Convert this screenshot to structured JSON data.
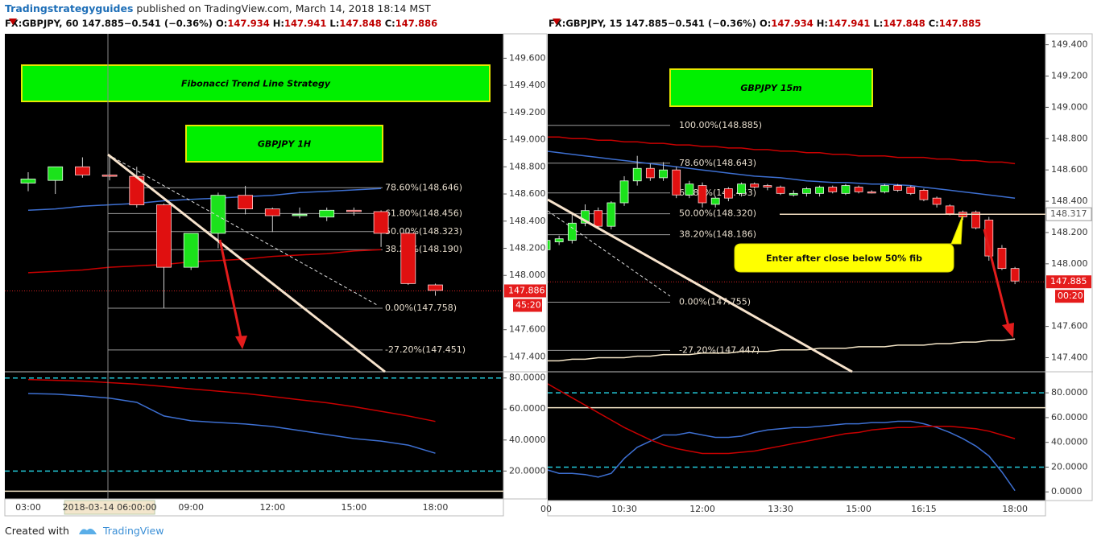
{
  "header": {
    "author": "Tradingstrategyguides",
    "published": "published on TradingView.com, March 14, 2018 18:14 MST"
  },
  "footer": {
    "created_with": "Created with",
    "brand": "TradingView"
  },
  "chart_data": [
    {
      "type": "candlestick",
      "symbol": "FX:GBPJPY, 60",
      "last": "147.885",
      "change": "−0.541 (−0.36%)",
      "ohlc": [
        {
          "label": "O:",
          "value": "147.934"
        },
        {
          "label": "H:",
          "value": "147.941"
        },
        {
          "label": "L:",
          "value": "147.848"
        },
        {
          "label": "C:",
          "value": "147.886"
        }
      ],
      "title": "Fibonacci Trend Line Strategy",
      "subtitle": "GBPJPY 1H",
      "categories": [
        "03:00",
        null,
        null,
        "2018-03-14 06:00:00",
        null,
        null,
        "09:00",
        null,
        null,
        "12:00",
        null,
        null,
        "15:00",
        null,
        null,
        "18:00"
      ],
      "candles": {
        "open": [
          148.68,
          148.7,
          148.8,
          148.74,
          148.73,
          148.52,
          148.06,
          148.31,
          148.59,
          148.49,
          148.44,
          148.43,
          148.48,
          148.47,
          148.31,
          147.93
        ],
        "high": [
          148.76,
          148.8,
          148.87,
          148.88,
          148.8,
          148.53,
          148.15,
          148.61,
          148.66,
          148.5,
          148.5,
          148.5,
          148.5,
          148.48,
          148.32,
          147.94
        ],
        "low": [
          148.62,
          148.6,
          148.72,
          148.7,
          148.5,
          147.76,
          148.04,
          148.2,
          148.45,
          148.32,
          148.42,
          148.4,
          148.44,
          148.21,
          147.93,
          147.85
        ],
        "close": [
          148.71,
          148.8,
          148.74,
          148.73,
          148.52,
          148.06,
          148.31,
          148.59,
          148.49,
          148.44,
          148.45,
          148.48,
          148.47,
          148.31,
          147.94,
          147.89
        ]
      },
      "up_color": "#1be21b",
      "down_color": "#e01010",
      "series": [
        {
          "color": "#3d6fd1",
          "values": [
            148.48,
            148.49,
            148.51,
            148.52,
            148.53,
            148.55,
            148.56,
            148.57,
            148.58,
            148.59,
            148.61,
            148.62,
            148.63,
            148.64,
            null,
            null
          ]
        },
        {
          "color": "#c80000",
          "values": [
            148.02,
            148.03,
            148.04,
            148.06,
            148.07,
            148.08,
            148.1,
            148.11,
            148.12,
            148.14,
            148.15,
            148.16,
            148.18,
            148.19,
            null,
            null
          ]
        }
      ],
      "ylim": [
        147.29,
        149.78
      ],
      "yticks": [
        {
          "value": 149.6,
          "label": "149.600"
        },
        {
          "value": 149.4,
          "label": "149.400"
        },
        {
          "value": 149.2,
          "label": "149.200"
        },
        {
          "value": 149.0,
          "label": "149.000"
        },
        {
          "value": 148.8,
          "label": "148.800"
        },
        {
          "value": 148.6,
          "label": "148.600"
        },
        {
          "value": 148.4,
          "label": "148.400"
        },
        {
          "value": 148.2,
          "label": "148.200"
        },
        {
          "value": 148.0,
          "label": "148.000"
        },
        {
          "value": 147.6,
          "label": "147.600"
        },
        {
          "value": 147.4,
          "label": "147.400"
        }
      ],
      "fib_levels": [
        {
          "label": "78.60%(148.646)",
          "value": 148.646
        },
        {
          "label": "61.80%(148.456)",
          "value": 148.456
        },
        {
          "label": "50.00%(148.323)",
          "value": 148.323
        },
        {
          "label": "38.20%(148.190)",
          "value": 148.19
        },
        {
          "label": "0.00%(147.758)",
          "value": 147.758
        },
        {
          "label": "-27.20%(147.451)",
          "value": 147.451
        }
      ],
      "last_price": 147.886,
      "countdown": "45:20",
      "indicator": {
        "ylim": [
          2,
          84
        ],
        "yticks": [
          {
            "value": 80,
            "label": "80.0000"
          },
          {
            "value": 60,
            "label": "60.0000"
          },
          {
            "value": 40,
            "label": "40.0000"
          },
          {
            "value": 20,
            "label": "20.0000"
          }
        ],
        "dashed_levels": [
          80,
          20
        ],
        "solid_levels": [
          7
        ],
        "series": [
          {
            "color": "#3d6fd1",
            "values": [
              70,
              69.6,
              68.5,
              67,
              64.3,
              55.5,
              52.4,
              51.3,
              50.3,
              48.7,
              46.1,
              43.5,
              40.9,
              39.3,
              36.7,
              31.5
            ]
          },
          {
            "color": "#c80000",
            "values": [
              79,
              78.5,
              78,
              77,
              76,
              74.5,
              73,
              71.5,
              70,
              68,
              66,
              64,
              61.5,
              58.5,
              55.5,
              52
            ]
          }
        ]
      }
    },
    {
      "type": "candlestick",
      "symbol": "FX:GBPJPY, 15",
      "last": "147.885",
      "change": "−0.541 (−0.36%)",
      "ohlc": [
        {
          "label": "O:",
          "value": "147.934"
        },
        {
          "label": "H:",
          "value": "147.941"
        },
        {
          "label": "L:",
          "value": "147.848"
        },
        {
          "label": "C:",
          "value": "147.885"
        }
      ],
      "subtitle": "GBPJPY 15m",
      "categories": [
        "00",
        null,
        null,
        null,
        null,
        null,
        "10:30",
        null,
        null,
        null,
        null,
        null,
        "12:00",
        null,
        null,
        null,
        null,
        null,
        "13:30",
        null,
        null,
        null,
        null,
        null,
        "15:00",
        null,
        null,
        null,
        null,
        "16:15",
        null,
        null,
        null,
        null,
        null,
        null,
        "18:00"
      ],
      "candles": {
        "open": [
          148.09,
          148.14,
          148.15,
          148.26,
          148.34,
          148.24,
          148.39,
          148.53,
          148.61,
          148.55,
          148.6,
          148.44,
          148.5,
          148.38,
          148.48,
          148.45,
          148.51,
          148.5,
          148.49,
          148.44,
          148.45,
          148.45,
          148.49,
          148.45,
          148.49,
          148.46,
          148.46,
          148.5,
          148.49,
          148.47,
          148.42,
          148.37,
          148.33,
          148.33,
          148.28,
          148.1,
          147.97
        ],
        "high": [
          148.17,
          148.18,
          148.32,
          148.38,
          148.36,
          148.4,
          148.56,
          148.69,
          148.64,
          148.65,
          148.62,
          148.53,
          148.52,
          148.43,
          148.49,
          148.52,
          148.52,
          148.51,
          148.5,
          148.47,
          148.49,
          148.5,
          148.5,
          148.51,
          148.5,
          148.47,
          148.51,
          148.51,
          148.5,
          148.48,
          148.43,
          148.38,
          148.34,
          148.34,
          148.3,
          148.12,
          147.98
        ],
        "low": [
          148.05,
          148.12,
          148.13,
          148.24,
          148.22,
          148.22,
          148.37,
          148.5,
          148.53,
          148.53,
          148.42,
          148.42,
          148.36,
          148.36,
          148.4,
          148.43,
          148.48,
          148.47,
          148.44,
          148.43,
          148.43,
          148.43,
          148.45,
          148.44,
          148.45,
          148.45,
          148.45,
          148.46,
          148.44,
          148.4,
          148.36,
          148.31,
          148.28,
          148.22,
          148.02,
          147.96,
          147.87
        ],
        "close": [
          148.15,
          148.16,
          148.26,
          148.34,
          148.24,
          148.39,
          148.53,
          148.61,
          148.55,
          148.6,
          148.44,
          148.51,
          148.39,
          148.42,
          148.42,
          148.51,
          148.49,
          148.49,
          148.45,
          148.45,
          148.48,
          148.49,
          148.46,
          148.5,
          148.46,
          148.455,
          148.5,
          148.47,
          148.45,
          148.41,
          148.38,
          148.32,
          148.3,
          148.23,
          148.05,
          147.97,
          147.89
        ]
      },
      "up_color": "#1be21b",
      "down_color": "#e01010",
      "series": [
        {
          "color": "#3d6fd1",
          "values": [
            148.72,
            148.71,
            148.7,
            148.69,
            148.68,
            148.67,
            148.66,
            148.65,
            148.64,
            148.63,
            148.62,
            148.61,
            148.6,
            148.59,
            148.58,
            148.57,
            148.56,
            148.555,
            148.55,
            148.54,
            148.53,
            148.525,
            148.52,
            148.52,
            148.515,
            148.51,
            148.51,
            148.505,
            148.5,
            148.49,
            148.48,
            148.47,
            148.46,
            148.45,
            148.44,
            148.43,
            148.42
          ]
        },
        {
          "color": "#c80000",
          "values": [
            148.81,
            148.81,
            148.8,
            148.8,
            148.79,
            148.79,
            148.78,
            148.78,
            148.77,
            148.77,
            148.76,
            148.76,
            148.75,
            148.75,
            148.74,
            148.74,
            148.73,
            148.73,
            148.72,
            148.72,
            148.71,
            148.71,
            148.7,
            148.7,
            148.69,
            148.69,
            148.69,
            148.68,
            148.68,
            148.68,
            148.67,
            148.67,
            148.66,
            148.66,
            148.65,
            148.65,
            148.64
          ]
        },
        {
          "color": "#f5e6c8",
          "values": [
            147.38,
            147.38,
            147.39,
            147.39,
            147.4,
            147.4,
            147.4,
            147.41,
            147.41,
            147.42,
            147.42,
            147.42,
            147.43,
            147.43,
            147.43,
            147.44,
            147.44,
            147.44,
            147.45,
            147.45,
            147.45,
            147.46,
            147.46,
            147.46,
            147.47,
            147.47,
            147.47,
            147.48,
            147.48,
            147.48,
            147.49,
            147.49,
            147.5,
            147.5,
            147.51,
            147.51,
            147.52
          ]
        }
      ],
      "ylim": [
        147.31,
        149.47
      ],
      "yticks": [
        {
          "value": 149.4,
          "label": "149.400"
        },
        {
          "value": 149.2,
          "label": "149.200"
        },
        {
          "value": 149.0,
          "label": "149.000"
        },
        {
          "value": 148.8,
          "label": "148.800"
        },
        {
          "value": 148.6,
          "label": "148.600"
        },
        {
          "value": 148.4,
          "label": "148.400"
        },
        {
          "value": 148.2,
          "label": "148.200"
        },
        {
          "value": 148.0,
          "label": "148.000"
        },
        {
          "value": 147.6,
          "label": "147.600"
        },
        {
          "value": 147.4,
          "label": "147.400"
        }
      ],
      "fib_levels": [
        {
          "label": "100.00%(148.885)",
          "value": 148.885
        },
        {
          "label": "78.60%(148.643)",
          "value": 148.643
        },
        {
          "label": "61.80%(148.453)",
          "value": 148.453
        },
        {
          "label": "50.00%(148.320)",
          "value": 148.32
        },
        {
          "label": "38.20%(148.186)",
          "value": 148.186
        },
        {
          "label": "0.00%(147.755)",
          "value": 147.755
        },
        {
          "label": "-27.20%(147.447)",
          "value": 147.447
        }
      ],
      "hline": 148.317,
      "last_price": 147.885,
      "countdown": "00:20",
      "annotation": "Enter after close below 50% fib",
      "indicator": {
        "ylim": [
          -7,
          97
        ],
        "yticks": [
          {
            "value": 80,
            "label": "80.0000"
          },
          {
            "value": 60,
            "label": "60.0000"
          },
          {
            "value": 40,
            "label": "40.0000"
          },
          {
            "value": 20,
            "label": "20.0000"
          },
          {
            "value": 0,
            "label": "0.0000"
          }
        ],
        "dashed_levels": [
          80,
          20
        ],
        "solid_levels": [
          68
        ],
        "series": [
          {
            "color": "#3d6fd1",
            "values": [
              18,
              15,
              15,
              14,
              12,
              15,
              27,
              36,
              41,
              46,
              46,
              48,
              46,
              44,
              44,
              45,
              48,
              50,
              51,
              52,
              52,
              53,
              54,
              55,
              55,
              56,
              56,
              57,
              57,
              55,
              52,
              48,
              43,
              37,
              29,
              16,
              1
            ]
          },
          {
            "color": "#c80000",
            "values": [
              88,
              82,
              76,
              70,
              64,
              58,
              52,
              47,
              42,
              38,
              35,
              33,
              31,
              31,
              31,
              32,
              33,
              35,
              37,
              39,
              41,
              43,
              45,
              47,
              48,
              50,
              51,
              52,
              52,
              53,
              53,
              53,
              52,
              51,
              49,
              46,
              43
            ]
          }
        ]
      }
    }
  ]
}
